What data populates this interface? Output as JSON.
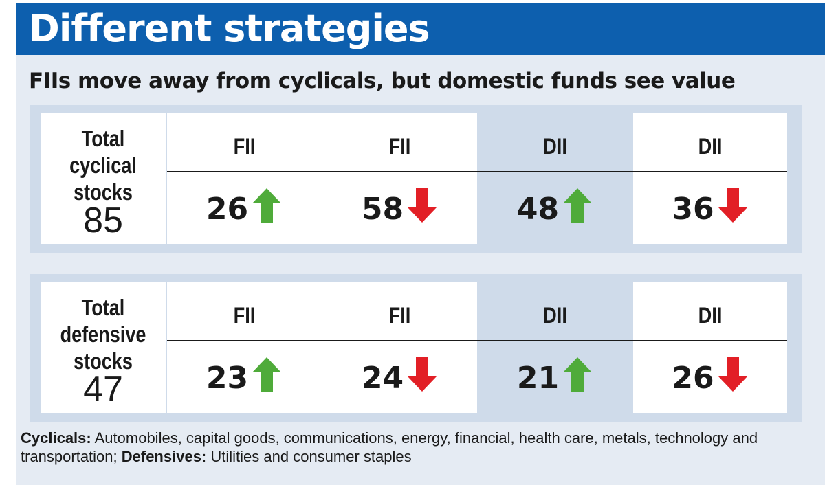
{
  "title": "Different strategies",
  "subtitle": "FIIs move away from cyclicals, but domestic funds see value",
  "colors": {
    "banner": "#0d5fae",
    "panel": "#e5ebf3",
    "up": "#4fab3a",
    "down": "#e21f26"
  },
  "chart_data": {
    "type": "table",
    "groups": [
      {
        "label_lines": [
          "Total",
          "cyclical",
          "stocks"
        ],
        "total": "85",
        "headers": [
          "FII",
          "FII",
          "DII",
          "DII"
        ],
        "values": [
          "26",
          "58",
          "48",
          "36"
        ],
        "directions": [
          "up",
          "down",
          "up",
          "down"
        ]
      },
      {
        "label_lines": [
          "Total",
          "defensive",
          "stocks"
        ],
        "total": "47",
        "headers": [
          "FII",
          "FII",
          "DII",
          "DII"
        ],
        "values": [
          "23",
          "24",
          "21",
          "26"
        ],
        "directions": [
          "up",
          "down",
          "up",
          "down"
        ]
      }
    ]
  },
  "footnote": {
    "cyc_label": "Cyclicals:",
    "cyc_text": " Automobiles, capital goods, communications, energy, financial, health care, metals, technology and transportation; ",
    "def_label": "Defensives:",
    "def_text": " Utilities and consumer staples"
  }
}
